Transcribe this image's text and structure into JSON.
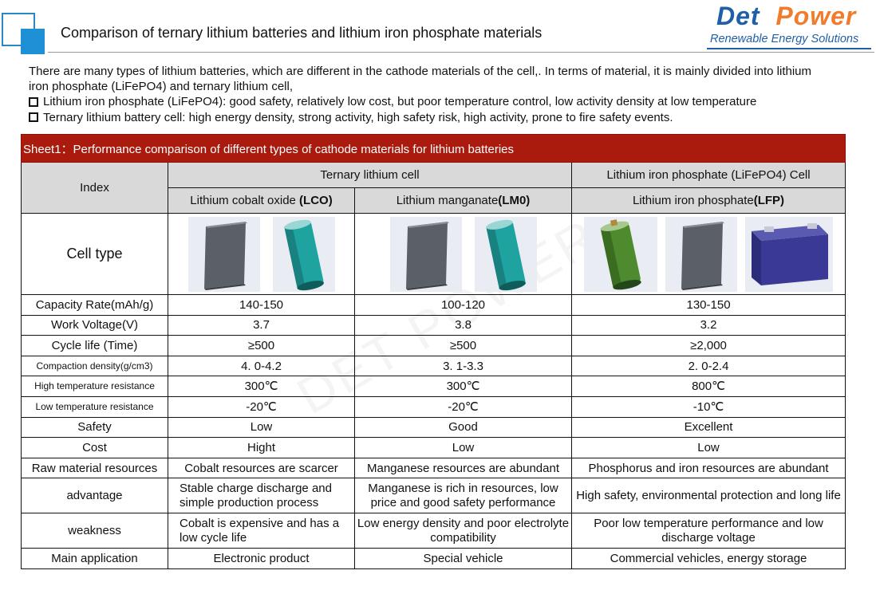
{
  "header": {
    "title": "Comparison of ternary lithium batteries and lithium iron phosphate materials",
    "logo_det": "Det",
    "logo_power": "Power",
    "logo_tagline": "Renewable Energy Solutions"
  },
  "intro": {
    "paragraph": "There are many types of lithium batteries, which are different in the cathode materials of the cell,. In terms of material, it is mainly divided into lithium iron phosphate (LiFePO4) and ternary lithium cell,",
    "bullets": [
      "Lithium iron phosphate (LiFePO4): good safety, relatively low cost, but poor temperature control, low activity density at low temperature",
      "Ternary lithium battery cell: high energy density, strong activity, high safety risk, high activity, prone to fire safety events."
    ]
  },
  "table": {
    "sheet_title": "Sheet1：Performance comparison of different types of cathode materials for lithium batteries",
    "index_label": "Index",
    "group_ternary": "Ternary lithium cell",
    "group_lfp": "Lithium iron phosphate (LiFePO4) Cell",
    "col_lco": {
      "name": "Lithium cobalt oxide ",
      "code": "(LCO)"
    },
    "col_lmo": {
      "name": "Lithium manganate",
      "code": "(LM0)"
    },
    "col_lfp": {
      "name": "Lithium iron phosphate",
      "code": "(LFP)"
    },
    "cell_type_label": "Cell type",
    "rows": [
      {
        "label": "Capacity Rate(mAh/g)",
        "lco": "140-150",
        "lmo": "100-120",
        "lfp": "130-150"
      },
      {
        "label": "Work Voltage(V)",
        "lco": "3.7",
        "lmo": "3.8",
        "lfp": "3.2"
      },
      {
        "label": "Cycle life (Time)",
        "lco": "≥500",
        "lmo": "≥500",
        "lfp": "≥2,000"
      },
      {
        "label": "Compaction density(g/cm3)",
        "lco": "4. 0-4.2",
        "lmo": "3. 1-3.3",
        "lfp": "2. 0-2.4"
      },
      {
        "label": "High temperature resistance",
        "lco": "300℃",
        "lmo": "300℃",
        "lfp": "800℃"
      },
      {
        "label": "Low temperature resistance",
        "lco": "-20℃",
        "lmo": "-20℃",
        "lfp": "-10℃"
      },
      {
        "label": "Safety",
        "lco": "Low",
        "lmo": "Good",
        "lfp": "Excellent"
      },
      {
        "label": "Cost",
        "lco": "Hight",
        "lmo": "Low",
        "lfp": "Low"
      },
      {
        "label": "Raw material resources",
        "lco": "Cobalt resources are scarcer",
        "lmo": "Manganese resources are abundant",
        "lfp": "Phosphorus and iron resources are abundant"
      },
      {
        "label": "advantage",
        "lco": "Stable charge discharge and simple production process",
        "lmo": "Manganese is rich in resources, low price and good safety performance",
        "lfp": "High safety, environmental protection and long life"
      },
      {
        "label": "weakness",
        "lco": "Cobalt is expensive and has a low cycle life",
        "lmo": "Low energy density and poor electrolyte compatibility",
        "lfp": "Poor low temperature performance and low discharge voltage"
      },
      {
        "label": "Main application",
        "lco": "Electronic product",
        "lmo": "Special vehicle",
        "lfp": "Commercial vehicles, energy storage"
      }
    ]
  },
  "watermark": "DET POWER"
}
